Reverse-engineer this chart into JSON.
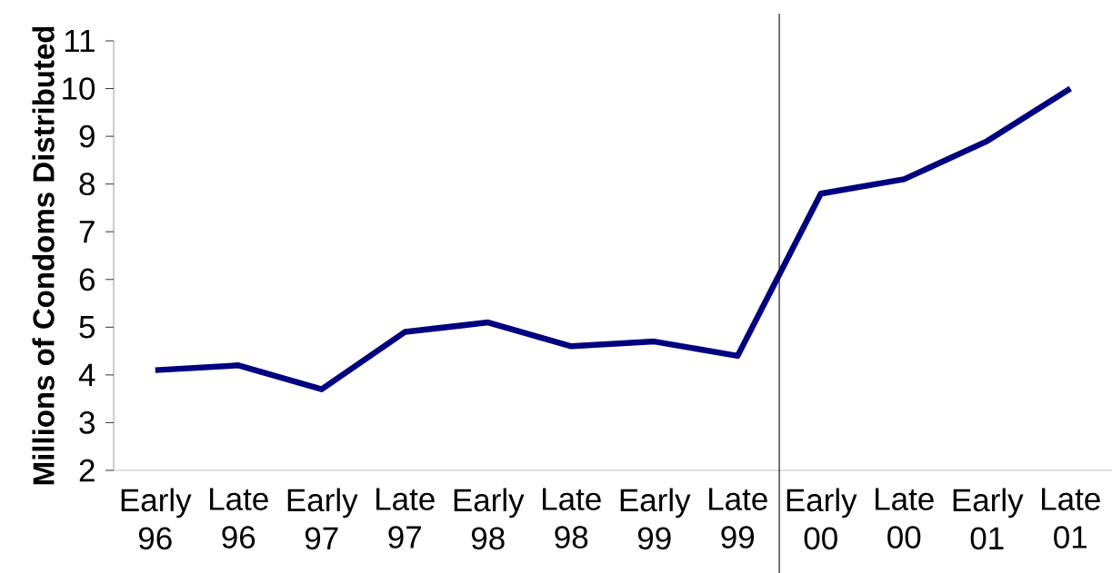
{
  "chart_data": {
    "type": "line",
    "ylabel": "Millions of Condoms Distributed",
    "categories": [
      "Early 96",
      "Late 96",
      "Early 97",
      "Late 97",
      "Early 98",
      "Late 98",
      "Early 99",
      "Late 99",
      "Early 00",
      "Late 00",
      "Early 01",
      "Late 01"
    ],
    "values": [
      4.1,
      4.2,
      3.7,
      4.9,
      5.1,
      4.6,
      4.7,
      4.4,
      7.8,
      8.1,
      8.9,
      10.0
    ],
    "color": "#000080",
    "ylim": [
      2,
      11
    ],
    "yticks": [
      2,
      3,
      4,
      5,
      6,
      7,
      8,
      9,
      10,
      11
    ]
  }
}
